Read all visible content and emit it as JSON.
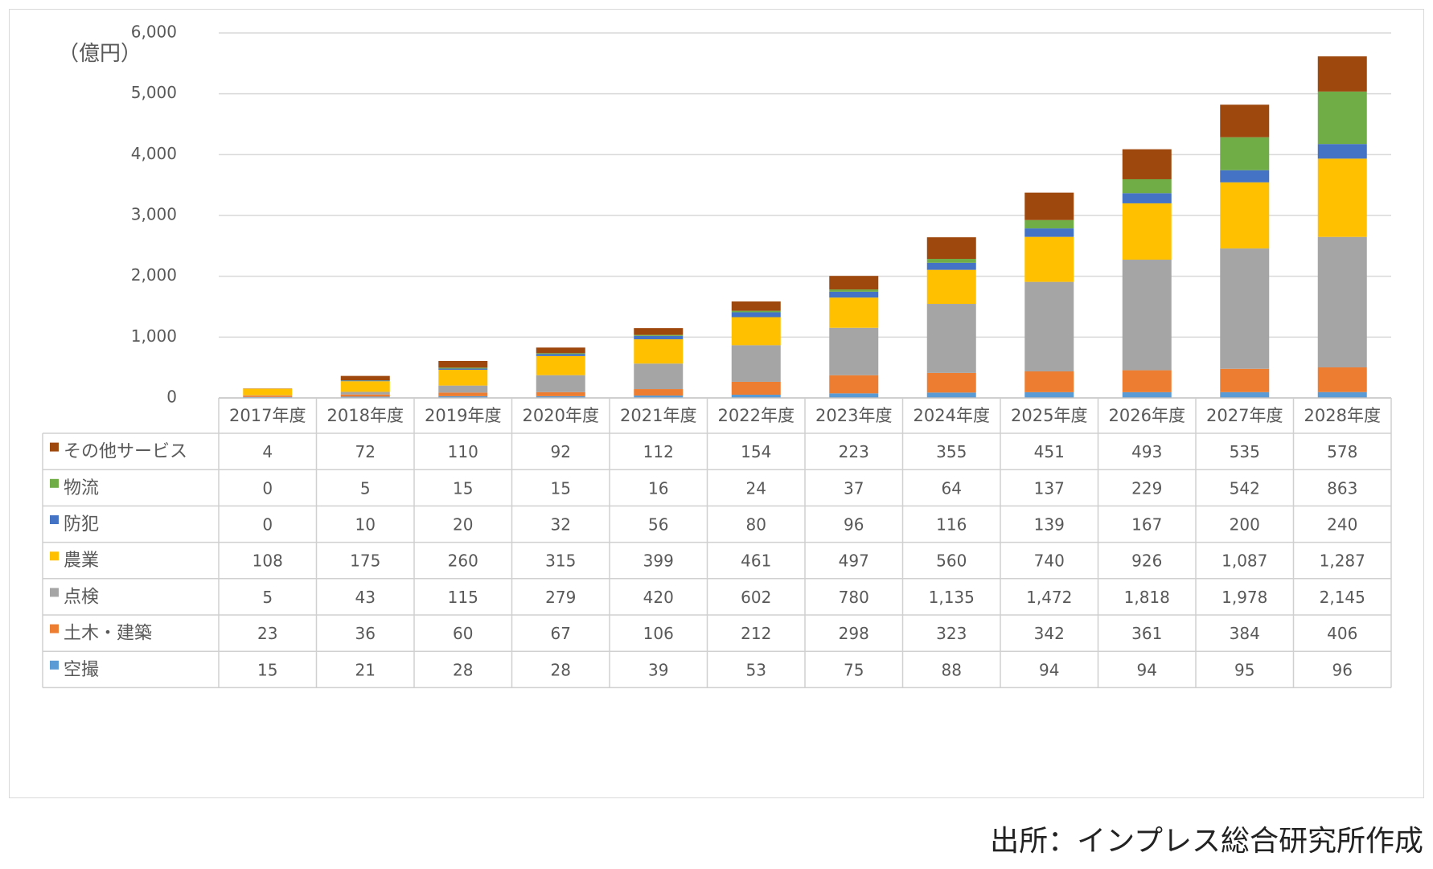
{
  "chart_data": {
    "type": "bar",
    "stacked": true,
    "title": "",
    "ylabel": "（億円）",
    "ylim": [
      0,
      6000
    ],
    "yticks": [
      "0",
      "1,000",
      "2,000",
      "3,000",
      "4,000",
      "5,000",
      "6,000"
    ],
    "ytick_values": [
      0,
      1000,
      2000,
      3000,
      4000,
      5000,
      6000
    ],
    "grid": true,
    "legend": "data-table",
    "categories": [
      "2017年度",
      "2018年度",
      "2019年度",
      "2020年度",
      "2021年度",
      "2022年度",
      "2023年度",
      "2024年度",
      "2025年度",
      "2026年度",
      "2027年度",
      "2028年度"
    ],
    "series": [
      {
        "name": "空撮",
        "color": "#5b9bd5",
        "values": [
          15,
          21,
          28,
          28,
          39,
          53,
          75,
          88,
          94,
          94,
          95,
          96
        ],
        "labels": [
          "15",
          "21",
          "28",
          "28",
          "39",
          "53",
          "75",
          "88",
          "94",
          "94",
          "95",
          "96"
        ]
      },
      {
        "name": "土木・建築",
        "color": "#ed7d31",
        "values": [
          23,
          36,
          60,
          67,
          106,
          212,
          298,
          323,
          342,
          361,
          384,
          406
        ],
        "labels": [
          "23",
          "36",
          "60",
          "67",
          "106",
          "212",
          "298",
          "323",
          "342",
          "361",
          "384",
          "406"
        ]
      },
      {
        "name": "点検",
        "color": "#a5a5a5",
        "values": [
          5,
          43,
          115,
          279,
          420,
          602,
          780,
          1135,
          1472,
          1818,
          1978,
          2145
        ],
        "labels": [
          "5",
          "43",
          "115",
          "279",
          "420",
          "602",
          "780",
          "1,135",
          "1,472",
          "1,818",
          "1,978",
          "2,145"
        ]
      },
      {
        "name": "農業",
        "color": "#ffc000",
        "values": [
          108,
          175,
          260,
          315,
          399,
          461,
          497,
          560,
          740,
          926,
          1087,
          1287
        ],
        "labels": [
          "108",
          "175",
          "260",
          "315",
          "399",
          "461",
          "497",
          "560",
          "740",
          "926",
          "1,087",
          "1,287"
        ]
      },
      {
        "name": "防犯",
        "color": "#4472c4",
        "values": [
          0,
          10,
          20,
          32,
          56,
          80,
          96,
          116,
          139,
          167,
          200,
          240
        ],
        "labels": [
          "0",
          "10",
          "20",
          "32",
          "56",
          "80",
          "96",
          "116",
          "139",
          "167",
          "200",
          "240"
        ]
      },
      {
        "name": "物流",
        "color": "#70ad47",
        "values": [
          0,
          5,
          15,
          15,
          16,
          24,
          37,
          64,
          137,
          229,
          542,
          863
        ],
        "labels": [
          "0",
          "5",
          "15",
          "15",
          "16",
          "24",
          "37",
          "64",
          "137",
          "229",
          "542",
          "863"
        ]
      },
      {
        "name": "その他サービス",
        "color": "#9e480e",
        "values": [
          4,
          72,
          110,
          92,
          112,
          154,
          223,
          355,
          451,
          493,
          535,
          578
        ],
        "labels": [
          "4",
          "72",
          "110",
          "92",
          "112",
          "154",
          "223",
          "355",
          "451",
          "493",
          "535",
          "578"
        ]
      }
    ]
  },
  "source": "出所：インプレス総合研究所作成"
}
